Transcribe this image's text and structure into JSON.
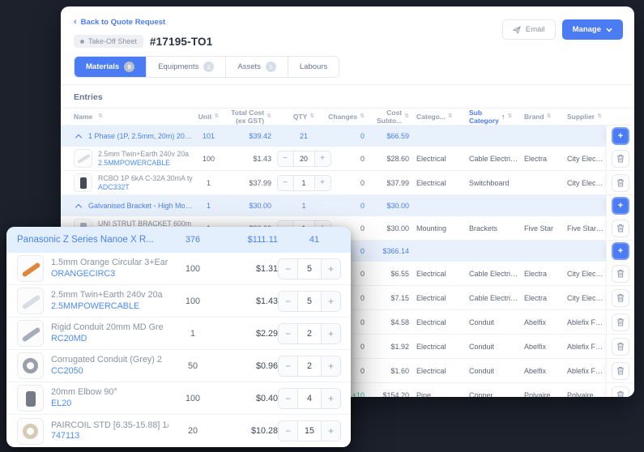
{
  "colors": {
    "accent": "#4c7cf4",
    "link": "#4a7df5",
    "group_row_bg": "#e9f1fd",
    "positive_change": "#2dbd8e",
    "page_background": "#1c212c"
  },
  "header": {
    "back_link": "Back to Quote Request",
    "sheet_badge": "Take-Off Sheet",
    "sheet_number": "#17195-TO1",
    "email_button": "Email",
    "manage_button": "Manage"
  },
  "tabs": [
    {
      "label": "Materials",
      "badge": "9",
      "active": true
    },
    {
      "label": "Equipments",
      "badge": "2",
      "active": false
    },
    {
      "label": "Assets",
      "badge": "1",
      "active": false
    },
    {
      "label": "Labours",
      "badge": "",
      "active": false
    }
  ],
  "entries": {
    "title": "Entries"
  },
  "table": {
    "columns": [
      {
        "label": "Name",
        "key": "name",
        "align": "left"
      },
      {
        "label": "Unit",
        "key": "unit",
        "align": "center"
      },
      {
        "label": "Total Cost\n(ex GST)",
        "key": "total",
        "align": "right"
      },
      {
        "label": "QTY",
        "key": "qty",
        "align": "center"
      },
      {
        "label": "Changes",
        "key": "chg",
        "align": "right"
      },
      {
        "label": "Cost\nSubto...",
        "key": "cost",
        "align": "right"
      },
      {
        "label": "Catego...",
        "key": "cat",
        "align": "left"
      },
      {
        "label": "Sub\nCategory",
        "key": "sub",
        "align": "left",
        "sorted": "asc"
      },
      {
        "label": "Brand",
        "key": "brand",
        "align": "left"
      },
      {
        "label": "Supplier",
        "key": "sup",
        "align": "left"
      }
    ],
    "rows": [
      {
        "type": "group",
        "name": "1 Phase (1P, 2.5mm, 20m) 20A ...",
        "unit": "101",
        "total_cost": "$39.42",
        "qty": "21",
        "changes": "0",
        "cost_subtotal": "$66.59"
      },
      {
        "type": "item",
        "name": "2.5mm Twin+Earth 240v 20a",
        "code": "2.5MMPOWERCABLE",
        "thumb": "#d9dde4",
        "shape": "bar",
        "unit": "100",
        "total_cost": "$1.43",
        "qty": "20",
        "changes": "0",
        "cost_subtotal": "$28.60",
        "category": "Electrical",
        "sub_category": "Cable Electrical",
        "brand": "Electra",
        "supplier": "City Electric"
      },
      {
        "type": "item",
        "name": "RCBO 1P 6kA C-32A 30mA ty",
        "code": "ADC332T",
        "thumb": "#454b57",
        "shape": "block",
        "unit": "1",
        "total_cost": "$37.99",
        "qty": "1",
        "changes": "0",
        "cost_subtotal": "$37.99",
        "category": "Electrical",
        "sub_category": "Switchboard",
        "brand": "",
        "supplier": "City Electric"
      },
      {
        "type": "group",
        "name": "Galvanised Bracket - High Mou...",
        "unit": "1",
        "total_cost": "$30.00",
        "qty": "1",
        "changes": "0",
        "cost_subtotal": "$30.00"
      },
      {
        "type": "item",
        "name": "UNI STRUT BRACKET 600m",
        "code": "USB600",
        "thumb": "#aeb6c0",
        "shape": "block",
        "unit": "1",
        "total_cost": "$30.00",
        "qty": "1",
        "changes": "0",
        "cost_subtotal": "$30.00",
        "category": "Mounting",
        "sub_category": "Brackets",
        "brand": "Five Star",
        "supplier": "Five Star Pty Lt"
      },
      {
        "type": "group",
        "name": "",
        "unit": "",
        "total_cost": "",
        "qty": "",
        "changes": "0",
        "cost_subtotal": "$366.14"
      },
      {
        "type": "item",
        "name": "",
        "code": "",
        "thumb": "",
        "shape": "none",
        "unit": "",
        "total_cost": "",
        "qty": "",
        "changes": "0",
        "cost_subtotal": "$6.55",
        "category": "Electrical",
        "sub_category": "Cable Electrical",
        "brand": "Electra",
        "supplier": "City Electric"
      },
      {
        "type": "item",
        "name": "",
        "code": "",
        "thumb": "",
        "shape": "none",
        "unit": "",
        "total_cost": "",
        "qty": "",
        "changes": "0",
        "cost_subtotal": "$7.15",
        "category": "Electrical",
        "sub_category": "Cable Electrical",
        "brand": "Electra",
        "supplier": "City Electric"
      },
      {
        "type": "item",
        "name": "",
        "code": "",
        "thumb": "",
        "shape": "none",
        "unit": "",
        "total_cost": "",
        "qty": "",
        "changes": "0",
        "cost_subtotal": "$4.58",
        "category": "Electrical",
        "sub_category": "Conduit",
        "brand": "Abelfix",
        "supplier": "Ablefix Fastene"
      },
      {
        "type": "item",
        "name": "",
        "code": "",
        "thumb": "",
        "shape": "none",
        "unit": "",
        "total_cost": "",
        "qty": "",
        "changes": "0",
        "cost_subtotal": "$1.92",
        "category": "Electrical",
        "sub_category": "Conduit",
        "brand": "Abelfix",
        "supplier": "Ablefix Fastene"
      },
      {
        "type": "item",
        "name": "",
        "code": "",
        "thumb": "",
        "shape": "none",
        "unit": "",
        "total_cost": "",
        "qty": "",
        "changes": "0",
        "cost_subtotal": "$1.60",
        "category": "Electrical",
        "sub_category": "Conduit",
        "brand": "Abelfix",
        "supplier": "Ablefix Fastene"
      },
      {
        "type": "item",
        "name": "",
        "code": "",
        "thumb": "",
        "shape": "none",
        "unit": "",
        "total_cost": "",
        "qty": "",
        "changes": "+10",
        "cost_subtotal": "$154.20",
        "category": "Pipe",
        "sub_category": "Copper",
        "brand": "Polyaire",
        "supplier": "Polyaire"
      }
    ]
  },
  "overlay": {
    "header": {
      "name": "Panasonic Z Series Nanoe X R...",
      "unit": "376",
      "total_cost": "$111.11",
      "qty": "41"
    },
    "rows": [
      {
        "name": "1.5mm Orange Circular 3+Ear",
        "code": "ORANGECIRC3",
        "thumb": "#e0873d",
        "shape": "bar",
        "unit": "100",
        "total_cost": "$1.31",
        "qty": "5"
      },
      {
        "name": "2.5mm Twin+Earth 240v 20a",
        "code": "2.5MMPOWERCABLE",
        "thumb": "#d9dde4",
        "shape": "bar",
        "unit": "100",
        "total_cost": "$1.43",
        "qty": "5"
      },
      {
        "name": "Rigid Conduit 20mm MD Gre",
        "code": "RC20MD",
        "thumb": "#a7adb6",
        "shape": "bar",
        "unit": "1",
        "total_cost": "$2.29",
        "qty": "2"
      },
      {
        "name": "Corrugated Conduit (Grey) 2",
        "code": "CC2050",
        "thumb": "#9aa0a9",
        "shape": "ring",
        "unit": "50",
        "total_cost": "$0.96",
        "qty": "2"
      },
      {
        "name": "20mm Elbow 90°",
        "code": "EL20",
        "thumb": "#757b86",
        "shape": "block",
        "unit": "100",
        "total_cost": "$0.40",
        "qty": "4"
      },
      {
        "name": "PAIRCOIL STD [6.35-15.88] 1/",
        "code": "747113",
        "thumb": "#d6cbb4",
        "shape": "ring",
        "unit": "20",
        "total_cost": "$10.28",
        "qty": "15"
      }
    ]
  }
}
